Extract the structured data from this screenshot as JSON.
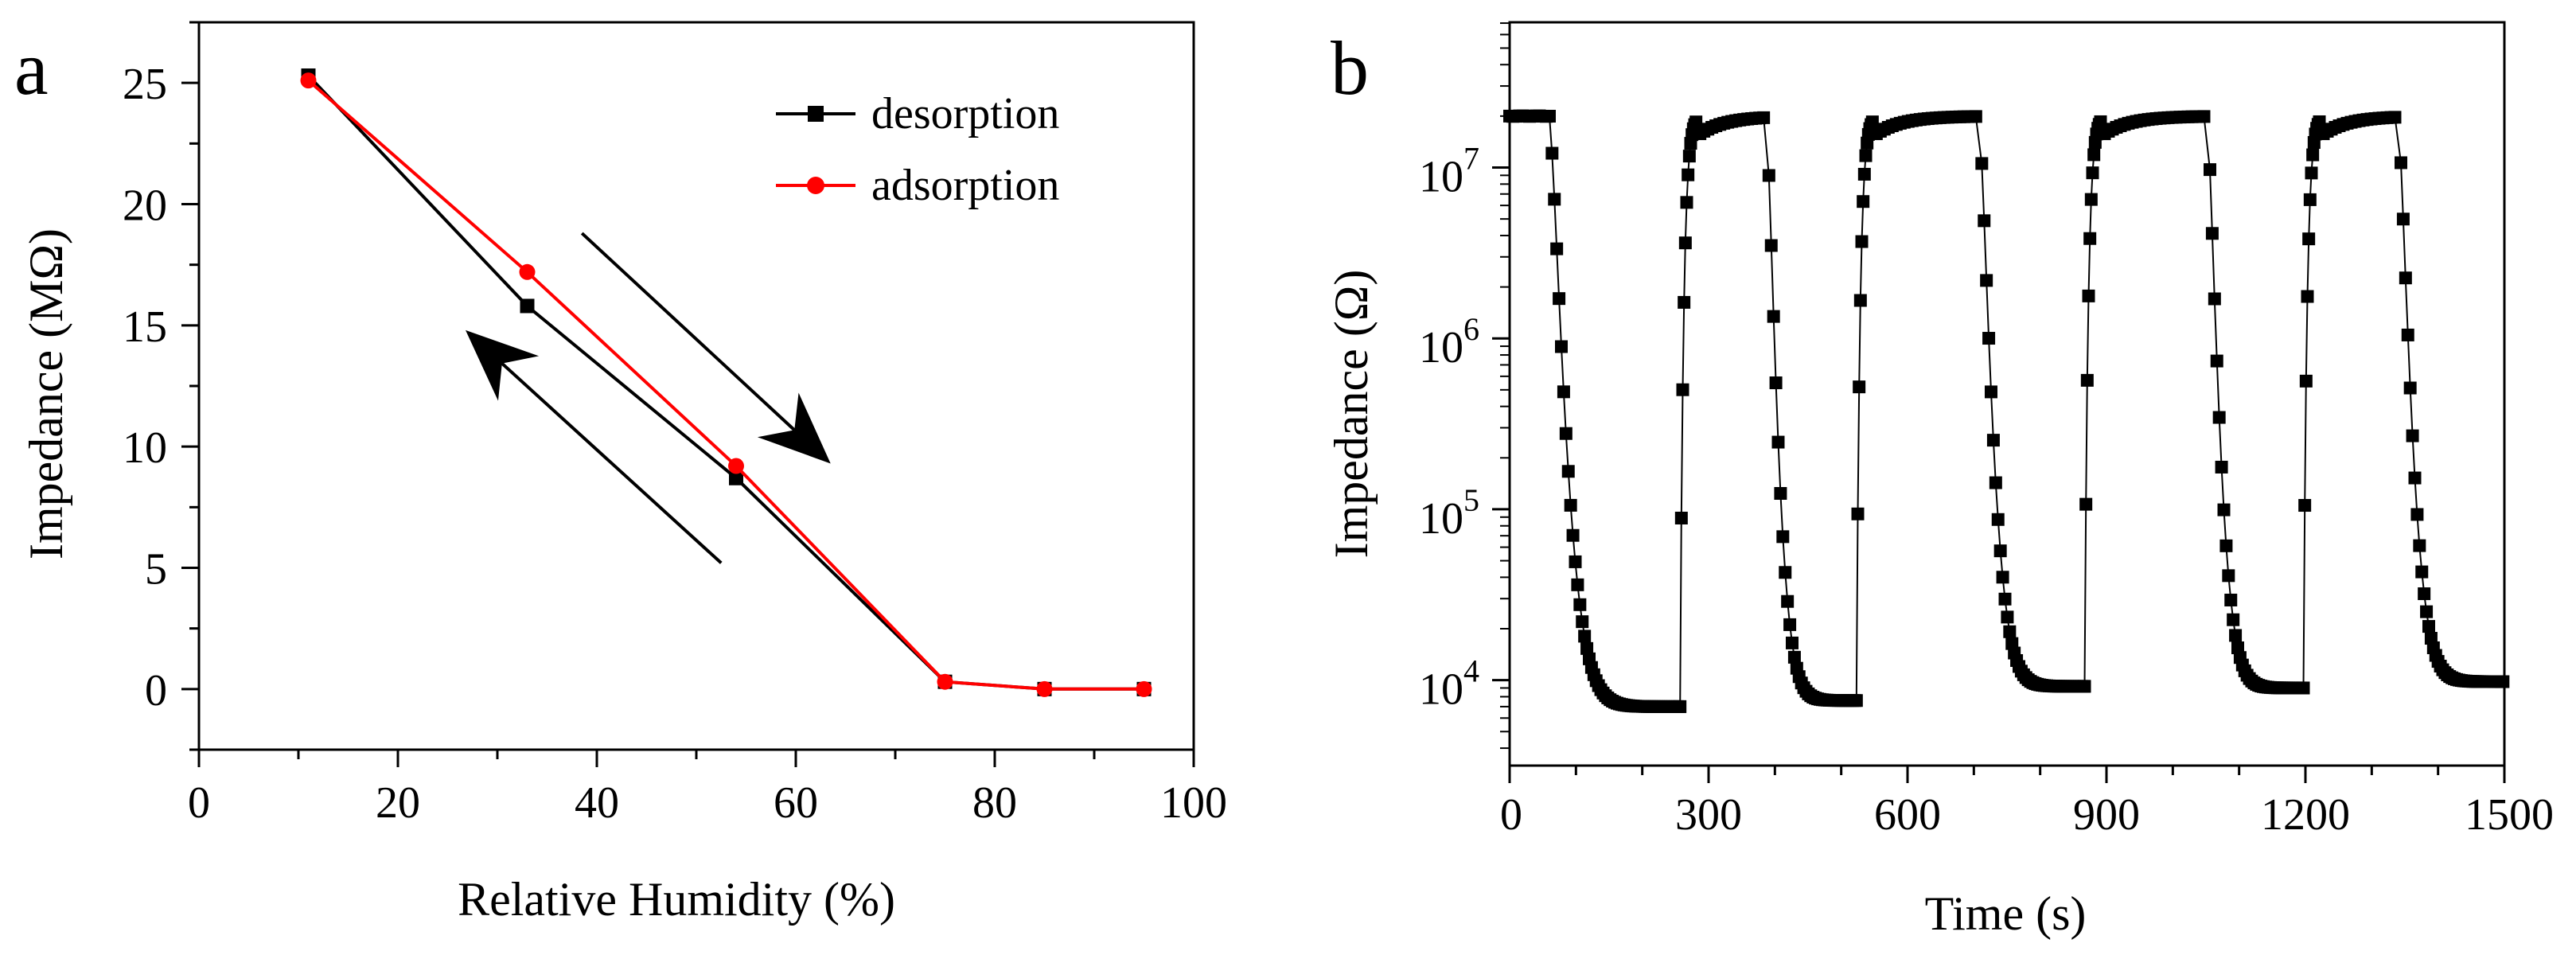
{
  "chart_data": [
    {
      "panel": "a",
      "type": "line",
      "title": "",
      "xlabel": "Relative Humidity (%)",
      "ylabel": "Impedance (MΩ)",
      "xlim": [
        0,
        100
      ],
      "ylim": [
        -2.5,
        27.5
      ],
      "xticks": [
        0,
        20,
        40,
        60,
        80,
        100
      ],
      "yticks": [
        0,
        5,
        10,
        15,
        20,
        25
      ],
      "legend_position": "top-right",
      "series": [
        {
          "name": "desorption",
          "color": "#000000",
          "marker": "square",
          "x": [
            11,
            33,
            54,
            75,
            85,
            95
          ],
          "y": [
            25.3,
            15.8,
            8.7,
            0.3,
            0.0,
            0.0
          ]
        },
        {
          "name": "adsorption",
          "color": "#ff0000",
          "marker": "circle",
          "x": [
            11,
            33,
            54,
            75,
            85,
            95
          ],
          "y": [
            25.1,
            17.2,
            9.2,
            0.3,
            0.0,
            0.0
          ]
        }
      ],
      "annotations": [
        {
          "type": "arrow",
          "direction": "down-right",
          "x1": 38.5,
          "y1": 18.8,
          "x2": 63.5,
          "y2": 9.3
        },
        {
          "type": "arrow",
          "direction": "up-left",
          "x1": 52.5,
          "y1": 5.2,
          "x2": 26.8,
          "y2": 14.8
        }
      ]
    },
    {
      "panel": "b",
      "type": "line",
      "title": "",
      "xlabel": "Time (s)",
      "ylabel": "Impedance (Ω)",
      "yscale": "log",
      "xlim": [
        0,
        1500
      ],
      "ylim_log10": [
        3.5,
        7.85
      ],
      "xticks": [
        0,
        300,
        600,
        900,
        1200,
        1500
      ],
      "yticks": [
        {
          "base": "10",
          "exp": "4"
        },
        {
          "base": "10",
          "exp": "5"
        },
        {
          "base": "10",
          "exp": "6"
        },
        {
          "base": "10",
          "exp": "7"
        }
      ],
      "series": [
        {
          "name": "impedance",
          "color": "#000000",
          "marker": "square",
          "high_ohm": 20000000,
          "cycles": [
            {
              "start": 0,
              "fall_start": 60,
              "fall_end": 257,
              "low_ohm": 7000
            },
            {
              "start": 257,
              "fall_start": 387,
              "fall_end": 523,
              "low_ohm": 7600
            },
            {
              "start": 523,
              "fall_start": 708,
              "fall_end": 867,
              "low_ohm": 9200
            },
            {
              "start": 867,
              "fall_start": 1052,
              "fall_end": 1197,
              "low_ohm": 9000
            },
            {
              "start": 1197,
              "fall_start": 1340,
              "fall_end": 1500,
              "low_ohm": 9800
            }
          ]
        }
      ]
    }
  ]
}
